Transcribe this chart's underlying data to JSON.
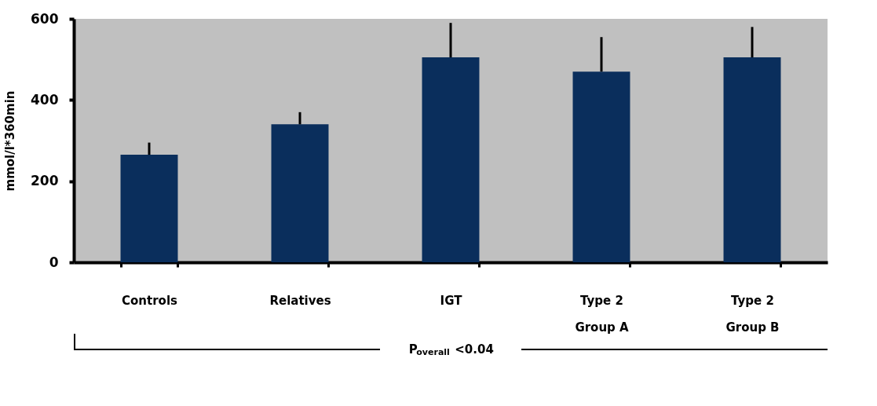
{
  "chart_data": {
    "type": "bar",
    "ylabel": "mmol/l*360min",
    "categories": [
      "Controls",
      "Relatives",
      "IGT",
      "Type 2\nGroup A",
      "Type 2\nGroup B"
    ],
    "values": [
      265,
      340,
      505,
      470,
      505
    ],
    "errors": [
      [
        265,
        295
      ],
      [
        340,
        370
      ],
      [
        505,
        590
      ],
      [
        470,
        555
      ],
      [
        505,
        580
      ]
    ],
    "color": "#0a2e5c",
    "ylim": [
      0,
      600
    ],
    "yticks": [
      0,
      200,
      400,
      600
    ],
    "grid": false,
    "annotations": [
      "P$_{overall}$<0.04"
    ]
  }
}
